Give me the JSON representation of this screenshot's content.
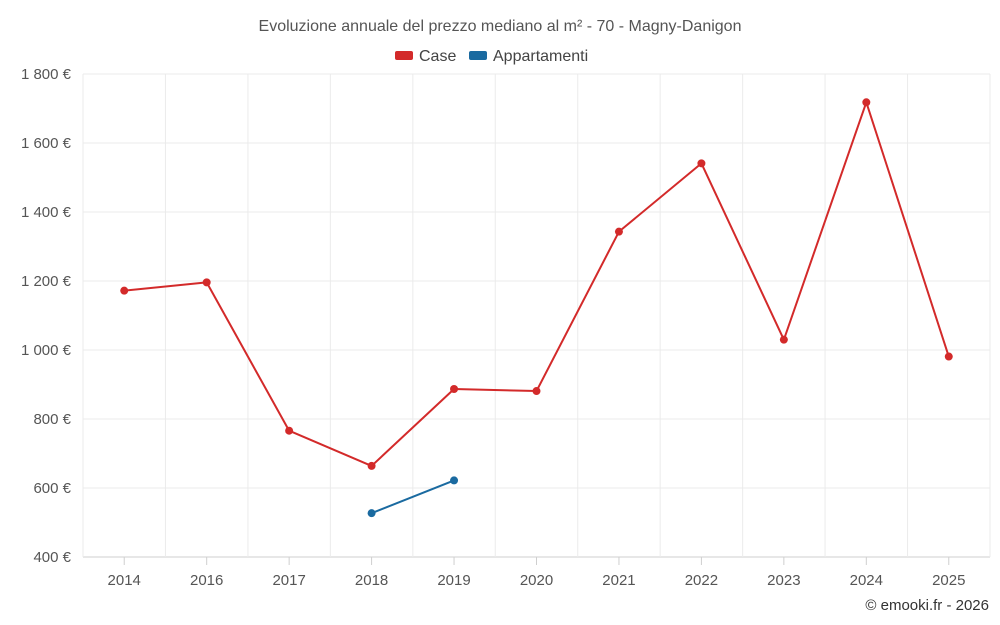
{
  "chart_data": {
    "type": "line",
    "title": "Evoluzione annuale del prezzo mediano al m² - 70 - Magny-Danigon",
    "categories": [
      "2014",
      "2016",
      "2017",
      "2018",
      "2019",
      "2020",
      "2021",
      "2022",
      "2023",
      "2024",
      "2025"
    ],
    "ylim": [
      400,
      1800
    ],
    "yticks": [
      400,
      600,
      800,
      1000,
      1200,
      1400,
      1600,
      1800
    ],
    "ytick_labels": [
      "400 €",
      "600 €",
      "800 €",
      "1 000 €",
      "1 200 €",
      "1 400 €",
      "1 600 €",
      "1 800 €"
    ],
    "xlabel": "",
    "ylabel": "",
    "legend_position": "top-center",
    "grid": true,
    "series": [
      {
        "name": "Case",
        "color": "#d32a2a",
        "values": [
          1172,
          1196,
          766,
          664,
          887,
          881,
          1343,
          1541,
          1030,
          1718,
          981
        ]
      },
      {
        "name": "Appartamenti",
        "color": "#1a6aa0",
        "values": [
          null,
          null,
          null,
          527,
          622,
          null,
          null,
          null,
          null,
          null,
          null
        ]
      }
    ],
    "credit": "© emooki.fr - 2026"
  }
}
